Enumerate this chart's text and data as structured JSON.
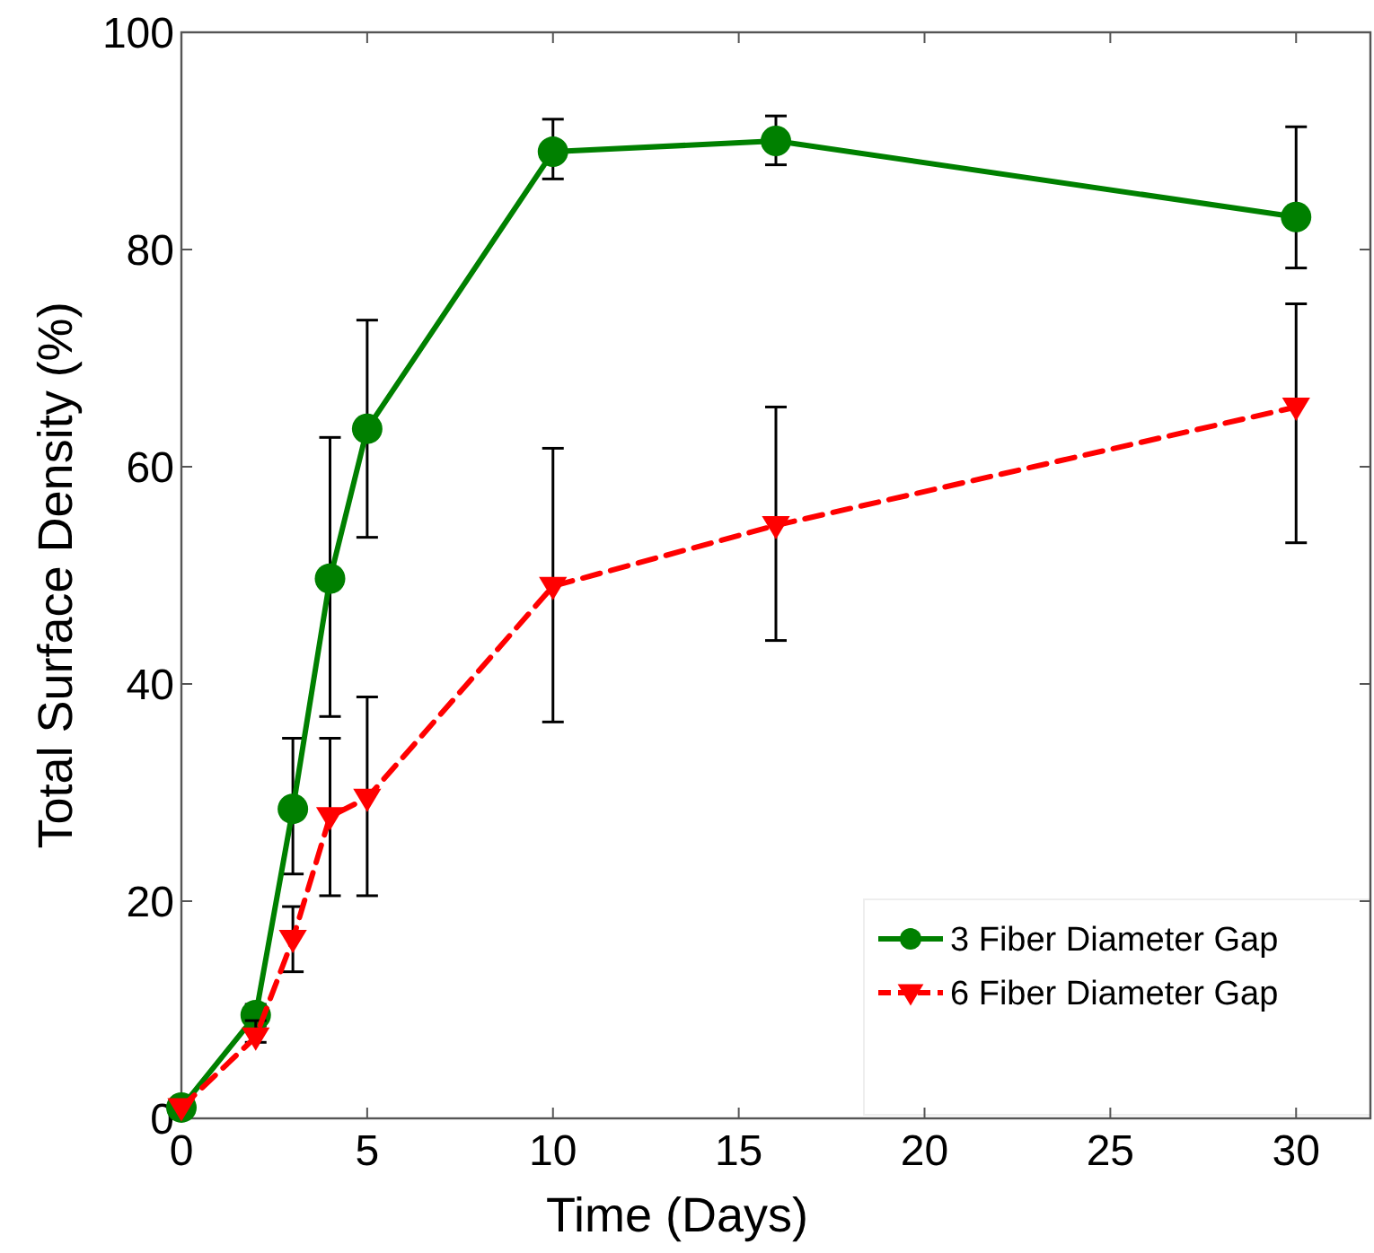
{
  "chart_data": {
    "type": "line",
    "xlabel": "Time (Days)",
    "ylabel": "Total Surface Density (%)",
    "x": [
      0,
      2,
      3,
      4,
      5,
      10,
      16,
      30
    ],
    "xlim": [
      0,
      32
    ],
    "xticks": [
      0,
      5,
      10,
      15,
      20,
      25,
      30
    ],
    "ylim": [
      0,
      100
    ],
    "yticks": [
      0,
      20,
      40,
      60,
      80,
      100
    ],
    "grid": false,
    "legend": "bottom right",
    "series": [
      {
        "name": "3 Fiber Diameter Gap",
        "color": "#008000",
        "marker": "circle",
        "line_style": "solid",
        "values": [
          1,
          9.5,
          28.5,
          49.7,
          63.5,
          89,
          90,
          83
        ],
        "errors": [
          null,
          [
            8.5,
            10.5
          ],
          [
            22.5,
            35
          ],
          [
            37,
            62.7
          ],
          [
            53.5,
            73.5
          ],
          [
            86.5,
            92
          ],
          [
            87.8,
            92.3
          ],
          [
            78.3,
            91.3
          ]
        ]
      },
      {
        "name": "6 Fiber Diameter Gap",
        "color": "#ff0000",
        "marker": "triangle",
        "line_style": "dashed",
        "values": [
          1,
          7.5,
          16.5,
          27.8,
          29.5,
          49,
          54.6,
          65.5
        ],
        "errors": [
          null,
          [
            7,
            9
          ],
          [
            13.5,
            19.5
          ],
          [
            20.5,
            35
          ],
          [
            20.5,
            38.8
          ],
          [
            36.5,
            61.7
          ],
          [
            44,
            65.5
          ],
          [
            53,
            75
          ]
        ]
      }
    ]
  }
}
